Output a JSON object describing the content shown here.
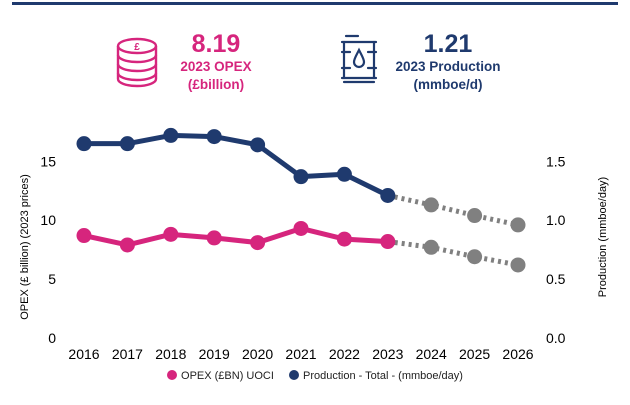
{
  "kpis": {
    "opex": {
      "value": "8.19",
      "line1": "2023 OPEX",
      "line2": "(£billion)",
      "icon": "coin-stack-icon",
      "icon_glyph": "£"
    },
    "production": {
      "value": "1.21",
      "line1": "2023 Production",
      "line2": "(mmboe/d)",
      "icon": "oil-barrel-icon"
    }
  },
  "colors": {
    "opex": "#d6257d",
    "production": "#1f3a6e",
    "forecast": "#808080",
    "topline": "#1f3a6e"
  },
  "chart_data": {
    "type": "line",
    "categories": [
      "2016",
      "2017",
      "2018",
      "2019",
      "2020",
      "2021",
      "2022",
      "2023",
      "2024",
      "2025",
      "2026"
    ],
    "series": [
      {
        "name": "OPEX (£BN) UOCI",
        "axis": "left",
        "values": [
          8.7,
          7.9,
          8.8,
          8.5,
          8.1,
          9.3,
          8.4,
          8.19,
          null,
          null,
          null
        ],
        "forecast": [
          null,
          null,
          null,
          null,
          null,
          null,
          null,
          8.19,
          7.7,
          6.9,
          6.2
        ]
      },
      {
        "name": "Production - Total - (mmboe/day)",
        "axis": "right",
        "values": [
          1.65,
          1.65,
          1.72,
          1.71,
          1.64,
          1.37,
          1.39,
          1.21,
          null,
          null,
          null
        ],
        "forecast": [
          null,
          null,
          null,
          null,
          null,
          null,
          null,
          1.21,
          1.13,
          1.04,
          0.96
        ]
      }
    ],
    "y_left": {
      "label": "OPEX (£ billion) (2023 prices)",
      "ticks": [
        "0",
        "5",
        "10",
        "15"
      ],
      "range": [
        0,
        18
      ]
    },
    "y_right": {
      "label": "Production (mmboe/day)",
      "ticks": [
        "0.0",
        "0.5",
        "1.0",
        "1.5"
      ],
      "range": [
        0,
        1.8
      ]
    }
  }
}
